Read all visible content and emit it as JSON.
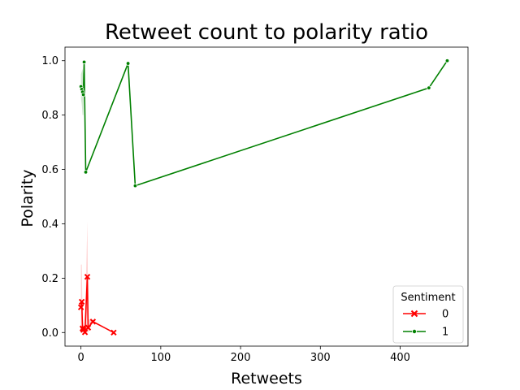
{
  "chart_data": {
    "type": "line",
    "title": "Retweet count to polarity ratio",
    "xlabel": "Retweets",
    "ylabel": "Polarity",
    "xlim": [
      -20,
      485
    ],
    "ylim": [
      -0.05,
      1.05
    ],
    "xticks": [
      0,
      100,
      200,
      300,
      400
    ],
    "yticks": [
      0.0,
      0.2,
      0.4,
      0.6,
      0.8,
      1.0
    ],
    "xtick_labels": [
      "0",
      "100",
      "200",
      "300",
      "400"
    ],
    "ytick_labels": [
      "0.0",
      "0.2",
      "0.4",
      "0.6",
      "0.8",
      "1.0"
    ],
    "grid": false,
    "legend": {
      "title": "Sentiment",
      "placement": "lower-right",
      "entries": [
        "0",
        "1"
      ]
    },
    "series": [
      {
        "name": "0",
        "color": "#ff0000",
        "marker": "x",
        "points": [
          {
            "x": 0,
            "y": 0.093
          },
          {
            "x": 1,
            "y": 0.113
          },
          {
            "x": 2,
            "y": 0.015
          },
          {
            "x": 3,
            "y": 0.01
          },
          {
            "x": 5,
            "y": 0.001
          },
          {
            "x": 8,
            "y": 0.205
          },
          {
            "x": 9,
            "y": 0.018
          },
          {
            "x": 15,
            "y": 0.04
          },
          {
            "x": 41,
            "y": 0.0
          }
        ],
        "band": [
          {
            "x": 0,
            "lo": 0.0,
            "hi": 0.25
          },
          {
            "x": 1,
            "lo": 0.0,
            "hi": 0.25
          },
          {
            "x": 2,
            "lo": 0.0,
            "hi": 0.06
          },
          {
            "x": 3,
            "lo": 0.0,
            "hi": 0.03
          },
          {
            "x": 5,
            "lo": 0.0,
            "hi": 0.01
          },
          {
            "x": 8,
            "lo": 0.0,
            "hi": 0.41
          },
          {
            "x": 9,
            "lo": 0.0,
            "hi": 0.05
          },
          {
            "x": 15,
            "lo": 0.04,
            "hi": 0.04
          },
          {
            "x": 41,
            "lo": 0.0,
            "hi": 0.0
          }
        ]
      },
      {
        "name": "1",
        "color": "#008000",
        "marker": "o",
        "points": [
          {
            "x": 0,
            "y": 0.905
          },
          {
            "x": 1,
            "y": 0.895
          },
          {
            "x": 2,
            "y": 0.885
          },
          {
            "x": 3,
            "y": 0.875
          },
          {
            "x": 4,
            "y": 0.995
          },
          {
            "x": 6,
            "y": 0.59
          },
          {
            "x": 59,
            "y": 0.99
          },
          {
            "x": 68,
            "y": 0.54
          },
          {
            "x": 436,
            "y": 0.9
          },
          {
            "x": 459,
            "y": 1.0
          }
        ],
        "band": [
          {
            "x": 0,
            "lo": 0.86,
            "hi": 0.95
          },
          {
            "x": 1,
            "lo": 0.84,
            "hi": 0.96
          },
          {
            "x": 2,
            "lo": 0.8,
            "hi": 0.97
          },
          {
            "x": 3,
            "lo": 0.8,
            "hi": 0.95
          },
          {
            "x": 4,
            "lo": 0.99,
            "hi": 1.0
          },
          {
            "x": 6,
            "lo": 0.59,
            "hi": 0.59
          },
          {
            "x": 59,
            "lo": 0.99,
            "hi": 0.99
          },
          {
            "x": 68,
            "lo": 0.54,
            "hi": 0.54
          },
          {
            "x": 436,
            "lo": 0.9,
            "hi": 0.9
          },
          {
            "x": 459,
            "lo": 1.0,
            "hi": 1.0
          }
        ]
      }
    ]
  }
}
